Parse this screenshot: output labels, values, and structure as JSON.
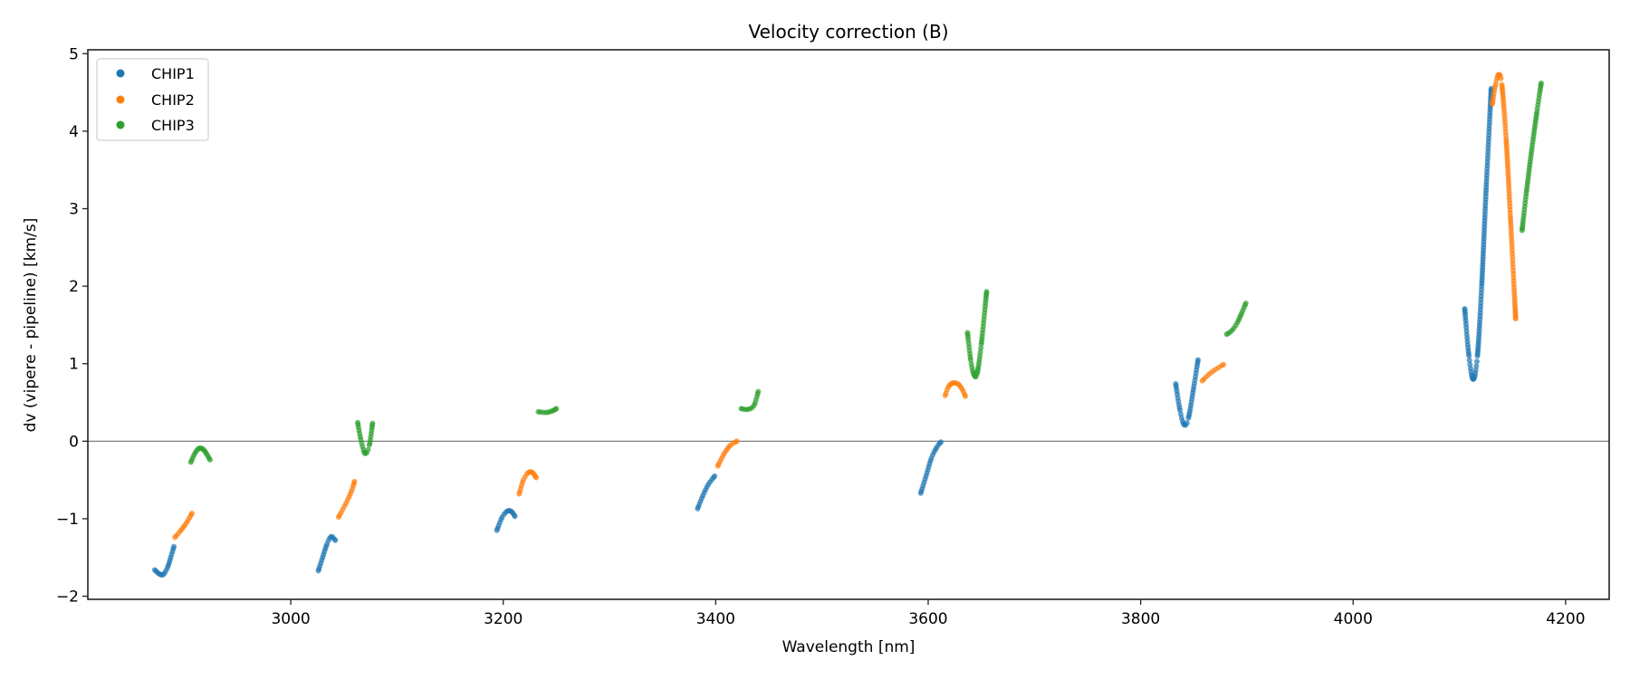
{
  "chart_data": {
    "type": "scatter",
    "title": "Velocity correction (B)",
    "xlabel": "Wavelength [nm]",
    "ylabel": "dv (vipere - pipeline) [km/s]",
    "xlim": [
      2809,
      4241
    ],
    "ylim": [
      -2.04,
      5.05
    ],
    "xticks": [
      3000,
      3200,
      3400,
      3600,
      3800,
      4000,
      4200
    ],
    "yticks": [
      -2,
      -1,
      0,
      1,
      2,
      3,
      4,
      5
    ],
    "xtick_labels": [
      "3000",
      "3200",
      "3400",
      "3600",
      "3800",
      "4000",
      "4200"
    ],
    "ytick_labels": [
      "−2",
      "−1",
      "0",
      "1",
      "2",
      "3",
      "4",
      "5"
    ],
    "reference_line_y": 0,
    "grid": false,
    "legend_position": "top-left",
    "series": [
      {
        "name": "CHIP1",
        "color": "#1f77b4",
        "segments": [
          [
            [
              2872,
              -1.66
            ],
            [
              2876,
              -1.71
            ],
            [
              2880,
              -1.72
            ],
            [
              2884,
              -1.63
            ],
            [
              2887,
              -1.5
            ],
            [
              2890,
              -1.36
            ]
          ],
          [
            [
              3026,
              -1.67
            ],
            [
              3030,
              -1.5
            ],
            [
              3034,
              -1.33
            ],
            [
              3038,
              -1.23
            ],
            [
              3042,
              -1.28
            ]
          ],
          [
            [
              3194,
              -1.15
            ],
            [
              3199,
              -0.98
            ],
            [
              3204,
              -0.9
            ],
            [
              3208,
              -0.91
            ],
            [
              3211,
              -0.97
            ]
          ],
          [
            [
              3383,
              -0.87
            ],
            [
              3388,
              -0.7
            ],
            [
              3393,
              -0.56
            ],
            [
              3399,
              -0.45
            ]
          ],
          [
            [
              3593,
              -0.67
            ],
            [
              3598,
              -0.45
            ],
            [
              3603,
              -0.22
            ],
            [
              3608,
              -0.08
            ],
            [
              3612,
              -0.01
            ]
          ],
          [
            [
              3833,
              0.74
            ],
            [
              3837,
              0.4
            ],
            [
              3841,
              0.21
            ],
            [
              3845,
              0.3
            ],
            [
              3850,
              0.7
            ],
            [
              3854,
              1.05
            ]
          ],
          [
            [
              4105,
              1.71
            ],
            [
              4109,
              1.1
            ],
            [
              4113,
              0.8
            ],
            [
              4117,
              1.1
            ],
            [
              4121,
              2.0
            ],
            [
              4125,
              3.2
            ],
            [
              4130,
              4.55
            ]
          ]
        ]
      },
      {
        "name": "CHIP2",
        "color": "#ff7f0e",
        "segments": [
          [
            [
              2891,
              -1.24
            ],
            [
              2896,
              -1.16
            ],
            [
              2902,
              -1.05
            ],
            [
              2907,
              -0.93
            ]
          ],
          [
            [
              3045,
              -0.98
            ],
            [
              3052,
              -0.8
            ],
            [
              3057,
              -0.65
            ],
            [
              3060,
              -0.52
            ]
          ],
          [
            [
              3215,
              -0.68
            ],
            [
              3219,
              -0.5
            ],
            [
              3224,
              -0.4
            ],
            [
              3228,
              -0.41
            ],
            [
              3231,
              -0.47
            ]
          ],
          [
            [
              3402,
              -0.32
            ],
            [
              3408,
              -0.16
            ],
            [
              3414,
              -0.05
            ],
            [
              3420,
              0.0
            ]
          ],
          [
            [
              3616,
              0.59
            ],
            [
              3619,
              0.7
            ],
            [
              3623,
              0.75
            ],
            [
              3628,
              0.74
            ],
            [
              3632,
              0.67
            ],
            [
              3635,
              0.58
            ]
          ],
          [
            [
              3858,
              0.78
            ],
            [
              3864,
              0.86
            ],
            [
              3871,
              0.93
            ],
            [
              3878,
              0.99
            ]
          ],
          [
            [
              4131,
              4.35
            ],
            [
              4134,
              4.6
            ],
            [
              4137,
              4.73
            ],
            [
              4140,
              4.6
            ],
            [
              4144,
              3.9
            ],
            [
              4148,
              2.9
            ],
            [
              4153,
              1.58
            ]
          ]
        ]
      },
      {
        "name": "CHIP3",
        "color": "#2ca02c",
        "segments": [
          [
            [
              2906,
              -0.27
            ],
            [
              2910,
              -0.15
            ],
            [
              2914,
              -0.09
            ],
            [
              2918,
              -0.11
            ],
            [
              2921,
              -0.17
            ],
            [
              2924,
              -0.24
            ]
          ],
          [
            [
              3063,
              0.24
            ],
            [
              3066,
              0.02
            ],
            [
              3070,
              -0.16
            ],
            [
              3074,
              -0.05
            ],
            [
              3077,
              0.23
            ]
          ],
          [
            [
              3233,
              0.38
            ],
            [
              3240,
              0.37
            ],
            [
              3246,
              0.39
            ],
            [
              3250,
              0.42
            ]
          ],
          [
            [
              3424,
              0.42
            ],
            [
              3430,
              0.41
            ],
            [
              3436,
              0.46
            ],
            [
              3440,
              0.64
            ]
          ],
          [
            [
              3637,
              1.4
            ],
            [
              3640,
              1.05
            ],
            [
              3643,
              0.86
            ],
            [
              3646,
              0.87
            ],
            [
              3650,
              1.25
            ],
            [
              3655,
              1.93
            ]
          ],
          [
            [
              3881,
              1.38
            ],
            [
              3886,
              1.43
            ],
            [
              3891,
              1.53
            ],
            [
              3895,
              1.65
            ],
            [
              3899,
              1.78
            ]
          ],
          [
            [
              4159,
              2.72
            ],
            [
              4163,
              3.2
            ],
            [
              4168,
              3.75
            ],
            [
              4173,
              4.25
            ],
            [
              4177,
              4.62
            ]
          ]
        ]
      }
    ]
  }
}
